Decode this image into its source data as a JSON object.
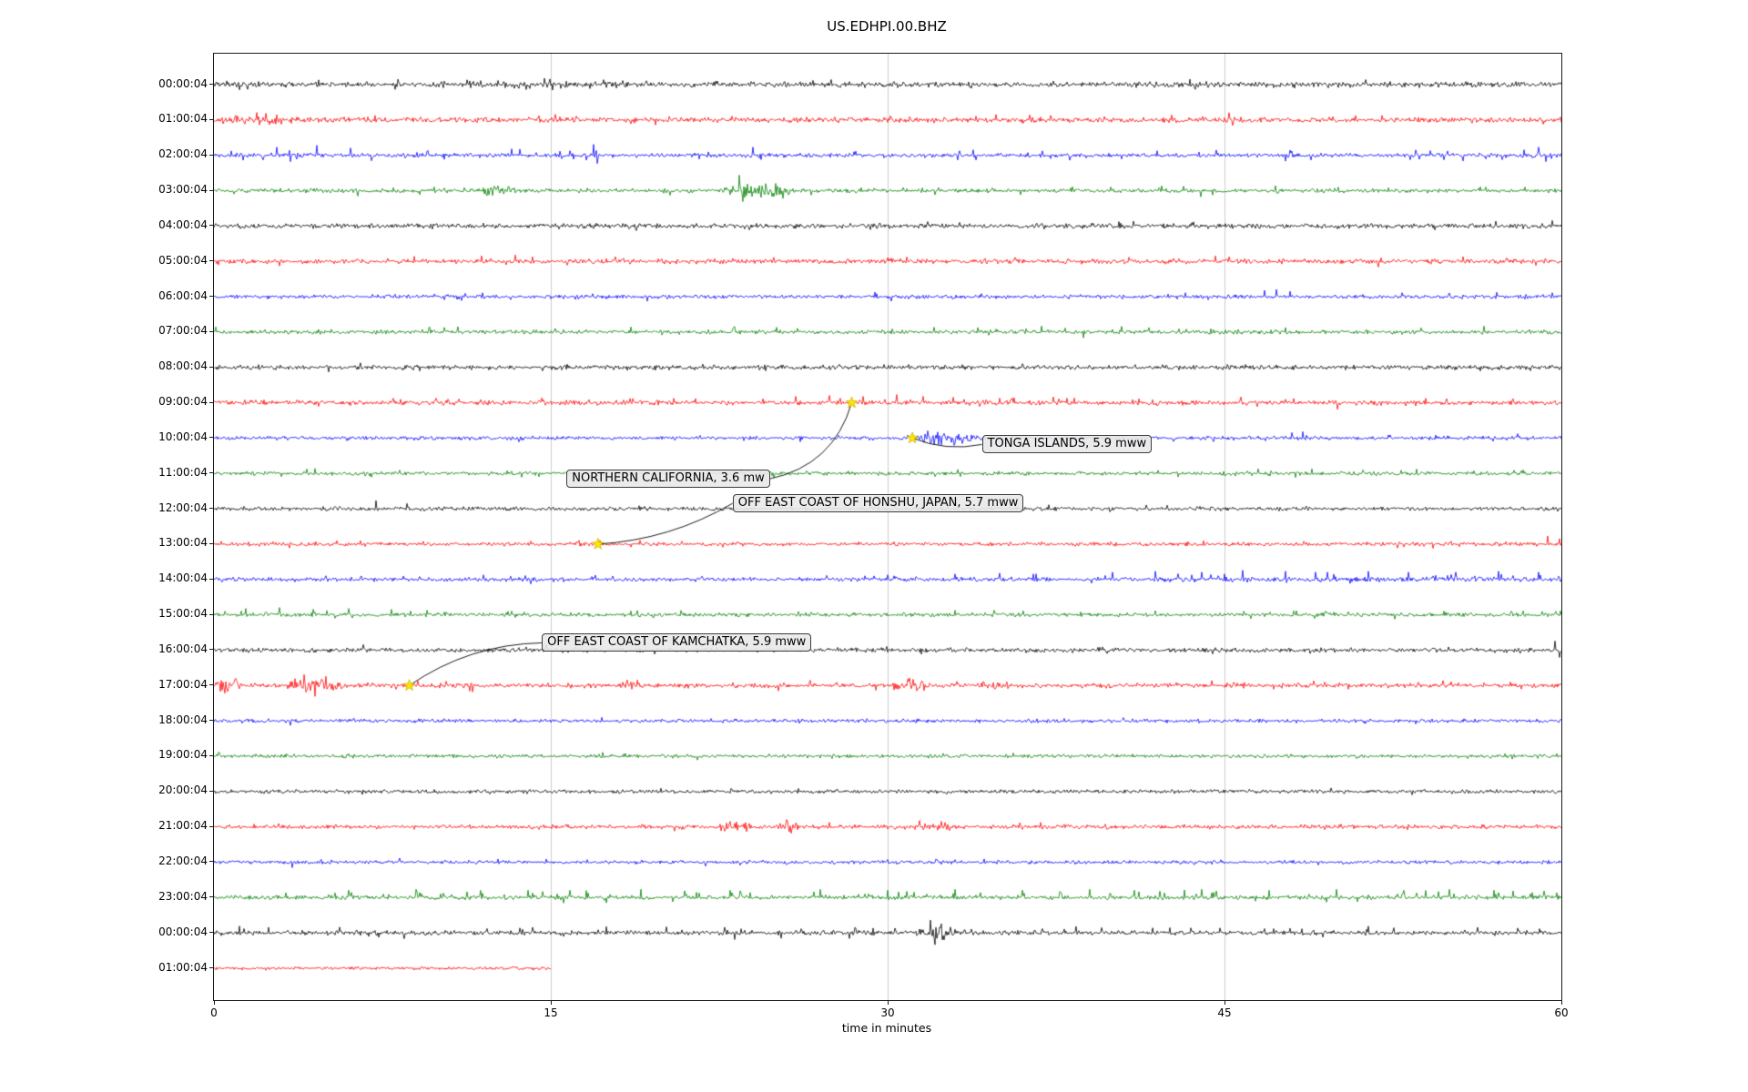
{
  "chart_data": {
    "type": "line",
    "subtype": "seismogram_dayplot",
    "title": "US.EDHPI.00.BHZ",
    "xlabel": "time in minutes",
    "x_range_minutes": [
      0,
      60
    ],
    "x_ticks": [
      "0",
      "15",
      "30",
      "45",
      "60"
    ],
    "x_tick_values": [
      0,
      15,
      30,
      45,
      60
    ],
    "grid_x_minutes": [
      15,
      30,
      45
    ],
    "grid_color": "#cccccc",
    "color_cycle": [
      "#000000",
      "#ff0000",
      "#0000ff",
      "#008000"
    ],
    "star_color": "#ffe600",
    "rows": [
      {
        "label": "00:00:04",
        "color": "#000000",
        "amp": 2.6,
        "sd": 0.03,
        "sa": 5,
        "ub": 0.6,
        "bursts": [
          {
            "t0": 13.3,
            "t1": 15.9,
            "m": 1.9
          }
        ],
        "marks": [
          {
            "t": 14.7,
            "a": 7
          },
          {
            "t": 15.1,
            "a": -6
          }
        ]
      },
      {
        "label": "01:00:04",
        "color": "#ff0000",
        "amp": 2.4,
        "sd": 0.03,
        "sa": 5,
        "ub": 0.6,
        "bursts": [
          {
            "t0": 0.6,
            "t1": 3.4,
            "m": 2.3
          }
        ],
        "marks": [
          {
            "t": 45.2,
            "a": 8
          },
          {
            "t": 45.35,
            "a": -6
          },
          {
            "t": 52.0,
            "a": 5
          }
        ]
      },
      {
        "label": "02:00:04",
        "color": "#0000ff",
        "amp": 2.0,
        "sd": 0.045,
        "sa": 6,
        "ub": 0.5,
        "marks": [
          {
            "t": 2.8,
            "a": 9
          },
          {
            "t": 3.4,
            "a": -7
          },
          {
            "t": 4.6,
            "a": 11
          },
          {
            "t": 6.1,
            "a": 8
          },
          {
            "t": 7.0,
            "a": -6
          },
          {
            "t": 16.9,
            "a": 12
          },
          {
            "t": 17.05,
            "a": -9
          },
          {
            "t": 24.0,
            "a": 9
          },
          {
            "t": 33.8,
            "a": 6
          },
          {
            "t": 42.0,
            "a": 5
          },
          {
            "t": 59.0,
            "a": 9
          },
          {
            "t": 59.3,
            "a": -7
          }
        ]
      },
      {
        "label": "03:00:04",
        "color": "#008000",
        "amp": 2.0,
        "sd": 0.03,
        "sa": 5,
        "ub": 0.7,
        "bursts": [
          {
            "t0": 11.6,
            "t1": 13.9,
            "m": 2.8
          },
          {
            "t0": 22.6,
            "t1": 26.0,
            "m": 3.6
          }
        ],
        "marks": [
          {
            "t": 23.4,
            "a": 17
          },
          {
            "t": 23.55,
            "a": -12
          },
          {
            "t": 25.0,
            "a": 8
          }
        ]
      },
      {
        "label": "04:00:04",
        "color": "#000000",
        "amp": 2.4,
        "sd": 0.025,
        "sa": 4,
        "ub": 0.6,
        "marks": [
          {
            "t": 59.6,
            "a": 6
          }
        ]
      },
      {
        "label": "05:00:04",
        "color": "#ff0000",
        "amp": 2.3,
        "sd": 0.035,
        "sa": 5,
        "ub": 0.75,
        "marks": [
          {
            "t": 11.9,
            "a": 6
          },
          {
            "t": 13.4,
            "a": 7
          },
          {
            "t": 14.2,
            "a": 5
          },
          {
            "t": 30.0,
            "a": 4
          },
          {
            "t": 44.6,
            "a": 6
          },
          {
            "t": 45.2,
            "a": 5
          }
        ]
      },
      {
        "label": "06:00:04",
        "color": "#0000ff",
        "amp": 1.8,
        "sd": 0.03,
        "sa": 4,
        "ub": 0.6,
        "marks": [
          {
            "t": 46.8,
            "a": 7
          },
          {
            "t": 47.3,
            "a": 8
          },
          {
            "t": 47.9,
            "a": 6
          },
          {
            "t": 55.0,
            "a": 4
          }
        ]
      },
      {
        "label": "07:00:04",
        "color": "#008000",
        "amp": 1.9,
        "sd": 0.04,
        "sa": 5,
        "ub": 0.85,
        "marks": [
          {
            "t": 23.2,
            "a": 6
          },
          {
            "t": 34.0,
            "a": 5
          }
        ]
      },
      {
        "label": "08:00:04",
        "color": "#000000",
        "amp": 2.2,
        "sd": 0.025,
        "sa": 4,
        "ub": 0.6,
        "marks": [
          {
            "t": 5.1,
            "a": -5
          },
          {
            "t": 36.0,
            "a": 4
          }
        ]
      },
      {
        "label": "09:00:04",
        "color": "#ff0000",
        "amp": 2.2,
        "sd": 0.035,
        "sa": 5,
        "ub": 0.8,
        "marks": [
          {
            "t": 25.9,
            "a": 7
          },
          {
            "t": 27.4,
            "a": 8
          },
          {
            "t": 28.9,
            "a": 7
          },
          {
            "t": 30.4,
            "a": 9
          },
          {
            "t": 31.6,
            "a": 7
          },
          {
            "t": 32.9,
            "a": 6
          },
          {
            "t": 35.0,
            "a": 5
          },
          {
            "t": 38.0,
            "a": 5
          }
        ]
      },
      {
        "label": "10:00:04",
        "color": "#0000ff",
        "amp": 1.7,
        "sd": 0.025,
        "sa": 4,
        "ub": 0.6,
        "bursts": [
          {
            "t0": 31.2,
            "t1": 34.0,
            "m": 3.4
          }
        ],
        "marks": [
          {
            "t": 31.8,
            "a": 8
          },
          {
            "t": 32.05,
            "a": -7
          },
          {
            "t": 48.0,
            "a": 6
          },
          {
            "t": 48.5,
            "a": 7
          }
        ]
      },
      {
        "label": "11:00:04",
        "color": "#008000",
        "amp": 1.8,
        "sd": 0.03,
        "sa": 4,
        "ub": 0.8,
        "marks": [
          {
            "t": 46.5,
            "a": 5
          }
        ]
      },
      {
        "label": "12:00:04",
        "color": "#000000",
        "amp": 1.9,
        "sd": 0.02,
        "sa": 4,
        "ub": 0.6,
        "marks": [
          {
            "t": 7.2,
            "a": 9
          }
        ]
      },
      {
        "label": "13:00:04",
        "color": "#ff0000",
        "amp": 1.8,
        "sd": 0.02,
        "sa": 4,
        "ub": 0.6,
        "marks": [
          {
            "t": 17.2,
            "a": 4
          },
          {
            "t": 59.4,
            "a": 9
          },
          {
            "t": 59.9,
            "a": 6
          }
        ]
      },
      {
        "label": "14:00:04",
        "color": "#0000ff",
        "amp": 1.9,
        "sd": 0.03,
        "sa": 5,
        "ub": 0.9,
        "bursts": [
          {
            "t0": 38.0,
            "t1": 60.0,
            "m": 1.4
          }
        ],
        "marks": [
          {
            "t": 5.0,
            "a": 4
          },
          {
            "t": 12.0,
            "a": 5
          },
          {
            "t": 30.0,
            "a": 5
          },
          {
            "t": 33.0,
            "a": 6
          },
          {
            "t": 35.0,
            "a": 7
          },
          {
            "t": 36.5,
            "a": 6
          },
          {
            "t": 40.0,
            "a": 8
          },
          {
            "t": 41.9,
            "a": 9
          },
          {
            "t": 44.0,
            "a": 8
          },
          {
            "t": 45.8,
            "a": 10
          },
          {
            "t": 47.7,
            "a": 9
          },
          {
            "t": 49.6,
            "a": 8
          },
          {
            "t": 51.4,
            "a": 9
          },
          {
            "t": 53.2,
            "a": 8
          },
          {
            "t": 55.3,
            "a": 8
          },
          {
            "t": 57.2,
            "a": 9
          },
          {
            "t": 59.0,
            "a": 8
          }
        ]
      },
      {
        "label": "15:00:04",
        "color": "#008000",
        "amp": 1.9,
        "sd": 0.035,
        "sa": 5,
        "ub": 0.9,
        "marks": [
          {
            "t": 1.4,
            "a": 7
          },
          {
            "t": 2.9,
            "a": 8
          },
          {
            "t": 4.4,
            "a": 6
          },
          {
            "t": 6.0,
            "a": 7
          },
          {
            "t": 7.9,
            "a": 6
          },
          {
            "t": 9.5,
            "a": 5
          },
          {
            "t": 33.0,
            "a": 5
          },
          {
            "t": 49.0,
            "a": -4
          }
        ]
      },
      {
        "label": "16:00:04",
        "color": "#000000",
        "amp": 2.1,
        "sd": 0.025,
        "sa": 4,
        "ub": 0.6,
        "marks": [
          {
            "t": 14.8,
            "a": 6
          },
          {
            "t": 59.7,
            "a": 10
          },
          {
            "t": 59.9,
            "a": -8
          }
        ]
      },
      {
        "label": "17:00:04",
        "color": "#ff0000",
        "amp": 2.2,
        "sd": 0.03,
        "sa": 5,
        "ub": 0.6,
        "bursts": [
          {
            "t0": 0.0,
            "t1": 1.3,
            "m": 3.0
          },
          {
            "t0": 3.0,
            "t1": 6.0,
            "m": 3.2
          },
          {
            "t0": 17.9,
            "t1": 19.3,
            "m": 2.2
          },
          {
            "t0": 30.1,
            "t1": 32.0,
            "m": 2.6
          },
          {
            "t0": 34.5,
            "t1": 35.7,
            "m": 1.8
          }
        ],
        "marks": [
          {
            "t": 4.0,
            "a": 12
          },
          {
            "t": 4.5,
            "a": -12
          },
          {
            "t": 5.0,
            "a": 10
          },
          {
            "t": 18.4,
            "a": 6
          },
          {
            "t": 30.9,
            "a": 7
          },
          {
            "t": 31.3,
            "a": -6
          }
        ]
      },
      {
        "label": "18:00:04",
        "color": "#0000ff",
        "amp": 1.7,
        "sd": 0.02,
        "sa": 3,
        "ub": 0.6,
        "marks": [
          {
            "t": 3.4,
            "a": -5
          }
        ]
      },
      {
        "label": "19:00:04",
        "color": "#008000",
        "amp": 1.7,
        "sd": 0.025,
        "sa": 3,
        "ub": 0.8,
        "marks": []
      },
      {
        "label": "20:00:04",
        "color": "#000000",
        "amp": 1.9,
        "sd": 0.02,
        "sa": 3,
        "ub": 0.6,
        "marks": []
      },
      {
        "label": "21:00:04",
        "color": "#ff0000",
        "amp": 2.0,
        "sd": 0.025,
        "sa": 4,
        "ub": 0.6,
        "bursts": [
          {
            "t0": 22.2,
            "t1": 24.3,
            "m": 2.4
          },
          {
            "t0": 25.1,
            "t1": 26.1,
            "m": 3.0
          },
          {
            "t0": 30.7,
            "t1": 33.3,
            "m": 1.6
          }
        ],
        "marks": [
          {
            "t": 23.0,
            "a": 6
          },
          {
            "t": 25.5,
            "a": 8
          },
          {
            "t": 25.7,
            "a": -7
          },
          {
            "t": 31.4,
            "a": 7
          },
          {
            "t": 32.4,
            "a": 6
          }
        ]
      },
      {
        "label": "22:00:04",
        "color": "#0000ff",
        "amp": 1.7,
        "sd": 0.02,
        "sa": 3,
        "ub": 0.6,
        "marks": [
          {
            "t": 3.5,
            "a": -6
          },
          {
            "t": 30.0,
            "a": 3
          }
        ]
      },
      {
        "label": "23:00:04",
        "color": "#008000",
        "amp": 2.0,
        "sd": 0.06,
        "sa": 7,
        "ub": 0.92,
        "marks": [
          {
            "t": 6.0,
            "a": 8
          },
          {
            "t": 9.0,
            "a": 9
          },
          {
            "t": 14.0,
            "a": 8
          },
          {
            "t": 19.0,
            "a": 9
          },
          {
            "t": 23.0,
            "a": 8
          },
          {
            "t": 27.0,
            "a": 9
          },
          {
            "t": 30.0,
            "a": 8
          },
          {
            "t": 33.0,
            "a": 9
          },
          {
            "t": 36.0,
            "a": 8
          },
          {
            "t": 39.0,
            "a": 9
          },
          {
            "t": 41.0,
            "a": 8
          },
          {
            "t": 44.0,
            "a": 9
          },
          {
            "t": 47.0,
            "a": 8
          },
          {
            "t": 50.0,
            "a": 9
          },
          {
            "t": 53.0,
            "a": 8
          },
          {
            "t": 55.0,
            "a": 9
          },
          {
            "t": 57.0,
            "a": 8
          }
        ]
      },
      {
        "label": "00:00:04",
        "color": "#000000",
        "amp": 2.1,
        "sd": 0.05,
        "sa": 6,
        "ub": 0.85,
        "bursts": [
          {
            "t0": 31.0,
            "t1": 33.0,
            "m": 3.6
          }
        ],
        "marks": [
          {
            "t": 31.9,
            "a": 14
          },
          {
            "t": 32.1,
            "a": -13
          },
          {
            "t": 32.4,
            "a": 10
          }
        ]
      },
      {
        "label": "01:00:04",
        "color": "#ff0000",
        "amp": 1.6,
        "sd": 0.01,
        "sa": 2,
        "ub": 0.6,
        "end": 15,
        "marks": []
      }
    ],
    "events": [
      {
        "label": "NORTHERN CALIFORNIA, 3.6 mw",
        "star_t": 28.4,
        "star_row": 9,
        "label_t": 15.7,
        "label_row": 11,
        "label_dy": 6,
        "curve": -0.3
      },
      {
        "label": "TONGA ISLANDS, 5.9 mww",
        "star_t": 31.1,
        "star_row": 10,
        "label_t": 34.2,
        "label_row": 10,
        "label_dy": 7,
        "curve": 0.15
      },
      {
        "label": "OFF EAST COAST OF HONSHU, JAPAN, 5.7 mww",
        "star_t": 17.1,
        "star_row": 13,
        "label_t": 23.1,
        "label_row": 12,
        "label_dy": -6,
        "curve": 0.12
      },
      {
        "label": "OFF EAST COAST OF KAMCHATKA, 5.9 mww",
        "star_t": 8.7,
        "star_row": 17,
        "label_t": 14.6,
        "label_row": 16,
        "label_dy": -8,
        "curve": -0.15
      }
    ]
  }
}
